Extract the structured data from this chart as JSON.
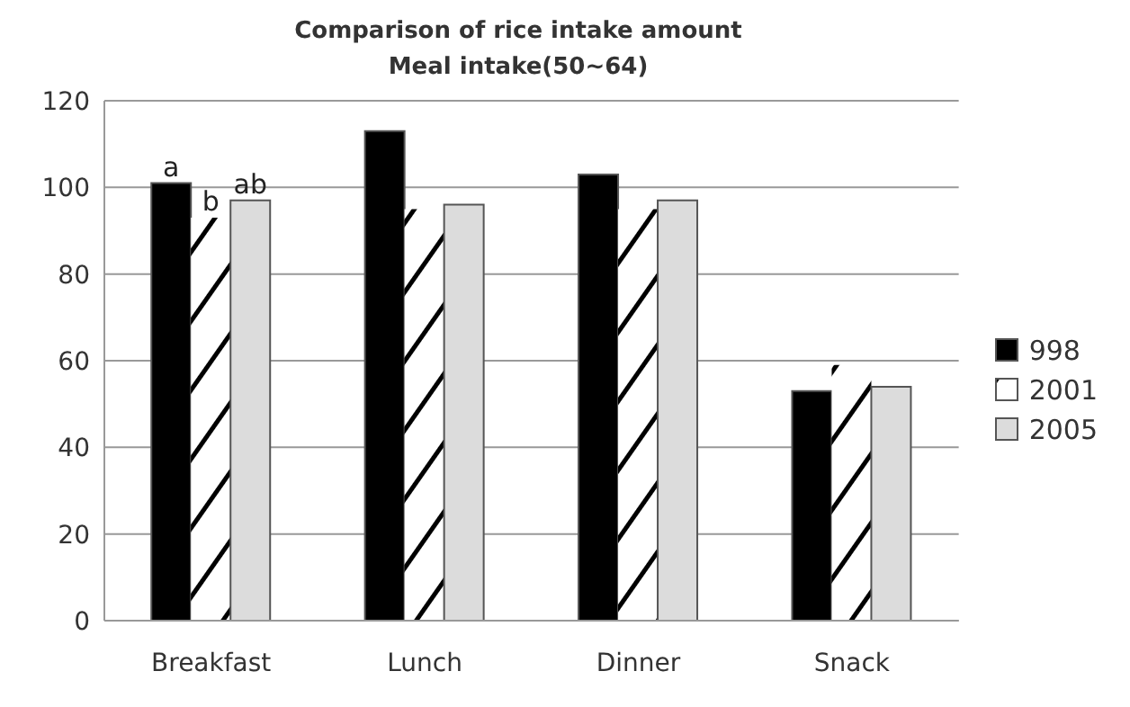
{
  "chart_data": {
    "type": "bar",
    "title": "Comparison of rice intake amount",
    "subtitle": "Meal intake(50~64)",
    "categories": [
      "Breakfast",
      "Lunch",
      "Dinner",
      "Snack"
    ],
    "series": [
      {
        "name": "998",
        "color": "#000000",
        "values": [
          101,
          113,
          103,
          53
        ]
      },
      {
        "name": "2001",
        "color": "#ffffff",
        "values": [
          93,
          95,
          95,
          59
        ]
      },
      {
        "name": "2005",
        "color": "#dcdcdc",
        "values": [
          97,
          96,
          97,
          54
        ]
      }
    ],
    "ylim": [
      0,
      120
    ],
    "yticks": [
      0,
      20,
      40,
      60,
      80,
      100,
      120
    ],
    "grid": "y",
    "legend": "right",
    "annotations": [
      "a",
      "b",
      "ab"
    ]
  }
}
